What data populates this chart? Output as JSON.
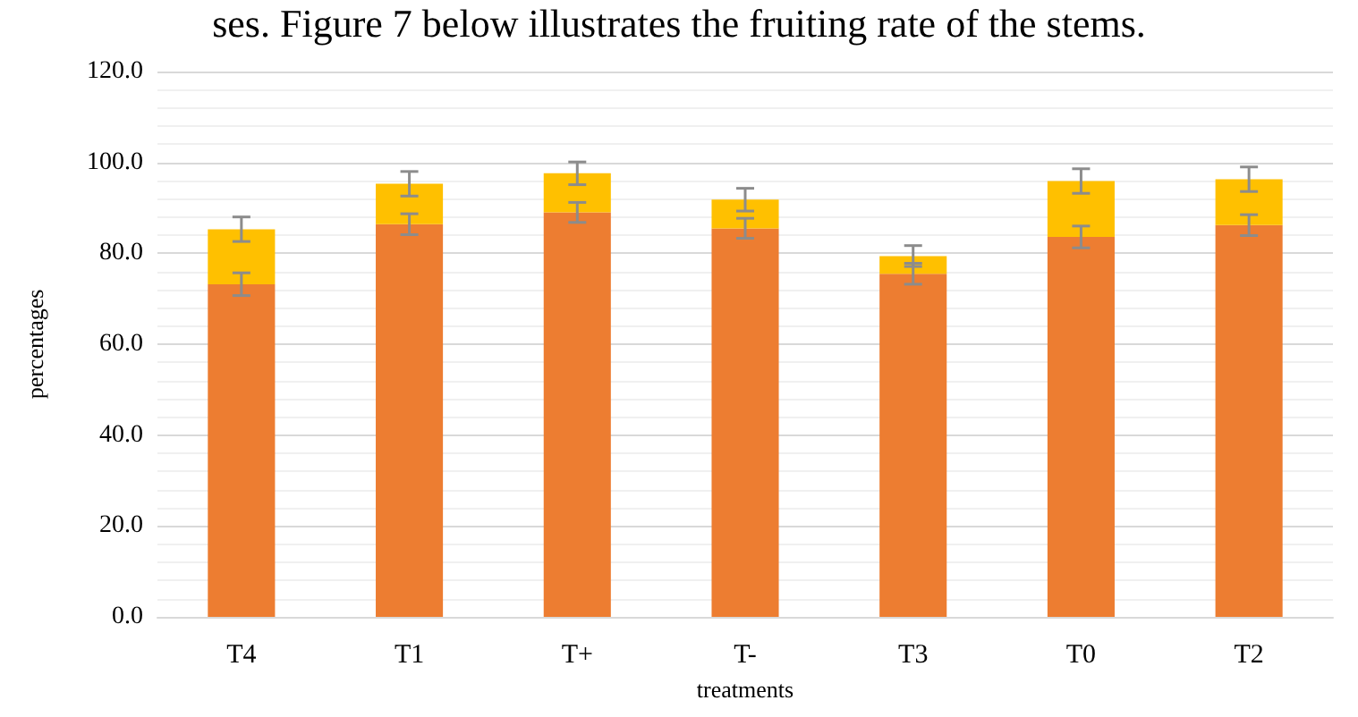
{
  "chart_data": {
    "type": "bar",
    "stacked": true,
    "xlabel": "treatments",
    "ylabel": "percentages",
    "annotations": [
      "ses. Figure 7 below illustrates the fruiting rate of the stems."
    ],
    "categories": [
      "T4",
      "T1",
      "T+",
      "T-",
      "T3",
      "T0",
      "T2"
    ],
    "series": [
      {
        "color": "#ed7d31",
        "values": [
          73.2,
          86.4,
          89.0,
          85.5,
          75.5,
          83.6,
          86.2
        ],
        "errors": [
          2.5,
          2.3,
          2.2,
          2.2,
          2.3,
          2.4,
          2.3
        ]
      },
      {
        "color": "#ffc000",
        "values": [
          12.1,
          8.9,
          8.6,
          6.3,
          3.9,
          12.3,
          10.1
        ],
        "errors": [
          2.7,
          2.7,
          2.5,
          2.5,
          2.3,
          2.7,
          2.7
        ]
      }
    ],
    "ylim": [
      0,
      120
    ],
    "yticks": [
      {
        "value": 0,
        "label": "0.0"
      },
      {
        "value": 20,
        "label": "20.0"
      },
      {
        "value": 40,
        "label": "40.0"
      },
      {
        "value": 60,
        "label": "60.0"
      },
      {
        "value": 80,
        "label": "80.0"
      },
      {
        "value": 100,
        "label": "100.0"
      },
      {
        "value": 120,
        "label": "120.0"
      }
    ],
    "grid": "y"
  }
}
